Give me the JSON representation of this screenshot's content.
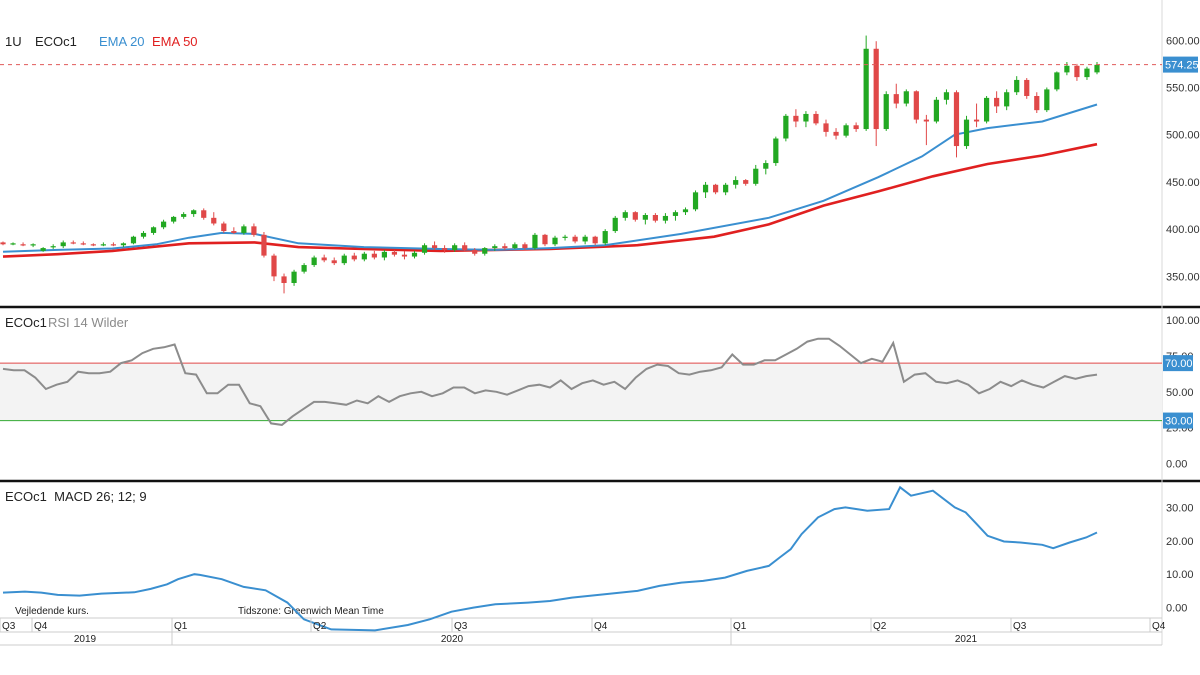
{
  "header": {
    "period": "1U",
    "symbol": "ECOc1",
    "ema_short_label": "EMA 20",
    "ema_long_label": "EMA 50"
  },
  "rsi_panel": {
    "title_symbol": "ECOc1",
    "title_indicator": "RSI 14 Wilder"
  },
  "macd_panel": {
    "title": "ECOc1  MACD 26; 12; 9"
  },
  "footer": {
    "note": "Vejledende kurs.",
    "timezone": "Tidszone: Greenwich Mean Time",
    "quarters": [
      "Q3",
      "Q4",
      "Q1",
      "Q2",
      "Q3",
      "Q4",
      "Q1",
      "Q2",
      "Q3",
      "Q4"
    ],
    "years": [
      "2019",
      "2020",
      "2021"
    ]
  },
  "colors": {
    "up": "#22a822",
    "down": "#e04848",
    "ema20": "#3a8fd0",
    "ema50": "#e02020",
    "rsi": "#8c8c8c",
    "macd": "#3a8fd0",
    "last_price_badge": "#3a8fd0"
  },
  "chart_data": [
    {
      "type": "candlestick",
      "last_price": 574.25,
      "last_price_label": "574.25",
      "y_ticks": [
        "600.00",
        "550.00",
        "500.00",
        "450.00",
        "400.00",
        "350.00"
      ],
      "ylim": [
        325,
        613
      ],
      "candles": [
        [
          386,
          387,
          383,
          384
        ],
        [
          384,
          386,
          383,
          385
        ],
        [
          384,
          386,
          382,
          383
        ],
        [
          383,
          385,
          381,
          384
        ],
        [
          377,
          381,
          376,
          380
        ],
        [
          381,
          384,
          379,
          382
        ],
        [
          382,
          388,
          380,
          386
        ],
        [
          386,
          388,
          384,
          385
        ],
        [
          385,
          387,
          383,
          384
        ],
        [
          384,
          385,
          382,
          383
        ],
        [
          383,
          386,
          382,
          384
        ],
        [
          384,
          386,
          382,
          383
        ],
        [
          383,
          386,
          381,
          385
        ],
        [
          385,
          393,
          384,
          392
        ],
        [
          392,
          398,
          390,
          396
        ],
        [
          396,
          403,
          394,
          402
        ],
        [
          402,
          410,
          400,
          408
        ],
        [
          408,
          414,
          406,
          413
        ],
        [
          413,
          418,
          411,
          416
        ],
        [
          416,
          421,
          413,
          420
        ],
        [
          420,
          422,
          410,
          412
        ],
        [
          412,
          418,
          404,
          406
        ],
        [
          406,
          408,
          396,
          398
        ],
        [
          398,
          402,
          395,
          396
        ],
        [
          396,
          405,
          394,
          403
        ],
        [
          403,
          406,
          392,
          394
        ],
        [
          394,
          397,
          370,
          372
        ],
        [
          372,
          374,
          345,
          350
        ],
        [
          350,
          353,
          332,
          343
        ],
        [
          343,
          357,
          340,
          355
        ],
        [
          355,
          364,
          353,
          362
        ],
        [
          362,
          372,
          360,
          370
        ],
        [
          370,
          373,
          365,
          367
        ],
        [
          367,
          370,
          362,
          364
        ],
        [
          364,
          374,
          362,
          372
        ],
        [
          372,
          375,
          366,
          368
        ],
        [
          368,
          376,
          366,
          374
        ],
        [
          374,
          377,
          368,
          370
        ],
        [
          370,
          378,
          367,
          376
        ],
        [
          376,
          378,
          371,
          373
        ],
        [
          373,
          377,
          368,
          371
        ],
        [
          371,
          377,
          369,
          375
        ],
        [
          375,
          385,
          373,
          383
        ],
        [
          383,
          387,
          378,
          380
        ],
        [
          380,
          383,
          375,
          378
        ],
        [
          378,
          385,
          376,
          383
        ],
        [
          383,
          386,
          376,
          378
        ],
        [
          378,
          380,
          372,
          374
        ],
        [
          374,
          381,
          372,
          380
        ],
        [
          380,
          384,
          377,
          382
        ],
        [
          382,
          385,
          378,
          380
        ],
        [
          380,
          386,
          379,
          384
        ],
        [
          384,
          386,
          378,
          380
        ],
        [
          380,
          396,
          378,
          394
        ],
        [
          394,
          395,
          382,
          384
        ],
        [
          384,
          393,
          382,
          391
        ],
        [
          391,
          394,
          388,
          392
        ],
        [
          392,
          394,
          385,
          387
        ],
        [
          387,
          394,
          384,
          392
        ],
        [
          392,
          393,
          383,
          385
        ],
        [
          385,
          400,
          383,
          398
        ],
        [
          398,
          414,
          396,
          412
        ],
        [
          412,
          420,
          409,
          418
        ],
        [
          418,
          419,
          408,
          410
        ],
        [
          410,
          417,
          405,
          415
        ],
        [
          415,
          417,
          407,
          409
        ],
        [
          409,
          417,
          406,
          414
        ],
        [
          414,
          420,
          409,
          418
        ],
        [
          418,
          423,
          415,
          421
        ],
        [
          421,
          441,
          419,
          439
        ],
        [
          439,
          450,
          433,
          447
        ],
        [
          447,
          448,
          437,
          439
        ],
        [
          439,
          449,
          436,
          447
        ],
        [
          447,
          456,
          443,
          452
        ],
        [
          452,
          453,
          446,
          448
        ],
        [
          448,
          468,
          446,
          464
        ],
        [
          464,
          473,
          458,
          470
        ],
        [
          470,
          498,
          467,
          496
        ],
        [
          496,
          522,
          493,
          520
        ],
        [
          520,
          527,
          508,
          514
        ],
        [
          514,
          525,
          508,
          522
        ],
        [
          522,
          525,
          510,
          512
        ],
        [
          512,
          516,
          498,
          503
        ],
        [
          503,
          507,
          495,
          499
        ],
        [
          499,
          512,
          497,
          510
        ],
        [
          510,
          513,
          503,
          506
        ],
        [
          506,
          605,
          504,
          591
        ],
        [
          591,
          599,
          488,
          506
        ],
        [
          506,
          546,
          504,
          543
        ],
        [
          543,
          554,
          528,
          533
        ],
        [
          533,
          548,
          530,
          546
        ],
        [
          546,
          547,
          512,
          516
        ],
        [
          516,
          521,
          489,
          514
        ],
        [
          514,
          540,
          512,
          537
        ],
        [
          537,
          548,
          532,
          545
        ],
        [
          545,
          547,
          476,
          488
        ],
        [
          488,
          520,
          485,
          516
        ],
        [
          516,
          533,
          508,
          514
        ],
        [
          514,
          541,
          512,
          539
        ],
        [
          539,
          546,
          523,
          530
        ],
        [
          530,
          548,
          526,
          545
        ],
        [
          545,
          562,
          542,
          558
        ],
        [
          558,
          560,
          538,
          541
        ],
        [
          541,
          545,
          523,
          526
        ],
        [
          526,
          550,
          524,
          548
        ],
        [
          548,
          567,
          546,
          566
        ],
        [
          566,
          577,
          563,
          573
        ],
        [
          573,
          575,
          557,
          561
        ],
        [
          561,
          572,
          558,
          570
        ],
        [
          566,
          577,
          564,
          574
        ]
      ],
      "ema20": [
        [
          0,
          376
        ],
        [
          0.05,
          378
        ],
        [
          0.1,
          379.5
        ],
        [
          0.14,
          384
        ],
        [
          0.17,
          391
        ],
        [
          0.2,
          396
        ],
        [
          0.23,
          395
        ],
        [
          0.27,
          385
        ],
        [
          0.33,
          381
        ],
        [
          0.4,
          379
        ],
        [
          0.45,
          378
        ],
        [
          0.5,
          380
        ],
        [
          0.55,
          383
        ],
        [
          0.62,
          395
        ],
        [
          0.7,
          412
        ],
        [
          0.75,
          430
        ],
        [
          0.8,
          455
        ],
        [
          0.84,
          477
        ],
        [
          0.87,
          500
        ],
        [
          0.9,
          507
        ],
        [
          0.95,
          514
        ],
        [
          1.0,
          532
        ]
      ],
      "ema50": [
        [
          0,
          371
        ],
        [
          0.05,
          373.5
        ],
        [
          0.1,
          377
        ],
        [
          0.17,
          385
        ],
        [
          0.23,
          386
        ],
        [
          0.27,
          381
        ],
        [
          0.33,
          379
        ],
        [
          0.4,
          377
        ],
        [
          0.5,
          379
        ],
        [
          0.58,
          383
        ],
        [
          0.65,
          392
        ],
        [
          0.7,
          405
        ],
        [
          0.75,
          425
        ],
        [
          0.8,
          440
        ],
        [
          0.85,
          456
        ],
        [
          0.9,
          469
        ],
        [
          0.95,
          478
        ],
        [
          1.0,
          490
        ]
      ]
    },
    {
      "type": "line",
      "name": "RSI",
      "y_ticks": [
        "100.00",
        "75.00",
        "50.00",
        "25.00",
        "0.00"
      ],
      "ylim": [
        -10,
        107
      ],
      "levels": [
        70,
        30
      ],
      "level_labels": [
        "70.00",
        "30.00"
      ],
      "values": [
        66,
        65,
        65,
        60,
        52,
        55,
        57,
        64,
        63,
        63,
        64,
        70,
        72,
        77,
        80,
        81,
        83,
        63,
        62,
        49,
        49,
        55,
        55,
        42,
        40,
        28,
        27,
        33,
        38,
        43,
        43,
        42,
        41,
        44,
        42,
        47,
        43,
        47,
        49,
        50,
        47,
        49,
        53,
        53,
        49,
        51,
        50,
        48,
        51,
        54,
        55,
        53,
        58,
        52,
        56,
        58,
        55,
        57,
        52,
        60,
        66,
        69,
        68,
        63,
        62,
        64,
        65,
        67,
        76,
        69,
        69,
        72,
        72,
        76,
        80,
        85,
        87,
        87,
        82,
        76,
        70,
        73,
        71,
        84,
        57,
        62,
        63,
        57,
        56,
        58,
        55,
        49,
        52,
        57,
        54,
        58,
        55,
        53,
        57,
        61,
        59,
        61,
        62
      ]
    },
    {
      "type": "line",
      "name": "MACD",
      "y_ticks": [
        "30.00",
        "20.00",
        "10.00",
        "0.00"
      ],
      "ylim": [
        -2.5,
        37
      ],
      "values": [
        [
          0,
          4.5
        ],
        [
          0.02,
          4.8
        ],
        [
          0.035,
          4.5
        ],
        [
          0.05,
          3.8
        ],
        [
          0.07,
          3.6
        ],
        [
          0.09,
          4.2
        ],
        [
          0.12,
          4.6
        ],
        [
          0.135,
          5.6
        ],
        [
          0.15,
          7.0
        ],
        [
          0.16,
          8.5
        ],
        [
          0.175,
          10.0
        ],
        [
          0.18,
          9.8
        ],
        [
          0.2,
          8.5
        ],
        [
          0.22,
          6.2
        ],
        [
          0.24,
          5.2
        ],
        [
          0.26,
          1.5
        ],
        [
          0.275,
          -3.5
        ],
        [
          0.3,
          -6.5
        ],
        [
          0.34,
          -6.8
        ],
        [
          0.37,
          -5.2
        ],
        [
          0.39,
          -3.5
        ],
        [
          0.41,
          -1.2
        ],
        [
          0.43,
          0
        ],
        [
          0.45,
          1.0
        ],
        [
          0.48,
          1.5
        ],
        [
          0.5,
          2.0
        ],
        [
          0.52,
          3.0
        ],
        [
          0.55,
          4.0
        ],
        [
          0.58,
          5.0
        ],
        [
          0.6,
          6.5
        ],
        [
          0.62,
          7.5
        ],
        [
          0.64,
          8.0
        ],
        [
          0.66,
          9.0
        ],
        [
          0.68,
          11.0
        ],
        [
          0.7,
          12.5
        ],
        [
          0.71,
          15.0
        ],
        [
          0.72,
          17.5
        ],
        [
          0.73,
          22.0
        ],
        [
          0.745,
          27.0
        ],
        [
          0.76,
          29.5
        ],
        [
          0.77,
          30.0
        ],
        [
          0.79,
          29.0
        ],
        [
          0.81,
          29.5
        ],
        [
          0.82,
          36.0
        ],
        [
          0.83,
          33.5
        ],
        [
          0.85,
          35.0
        ],
        [
          0.87,
          30.0
        ],
        [
          0.88,
          28.5
        ],
        [
          0.89,
          25.0
        ],
        [
          0.9,
          21.5
        ],
        [
          0.915,
          19.8
        ],
        [
          0.93,
          19.5
        ],
        [
          0.95,
          18.8
        ],
        [
          0.96,
          17.8
        ],
        [
          0.975,
          19.5
        ],
        [
          0.99,
          21.0
        ],
        [
          1.0,
          22.5
        ]
      ]
    }
  ]
}
